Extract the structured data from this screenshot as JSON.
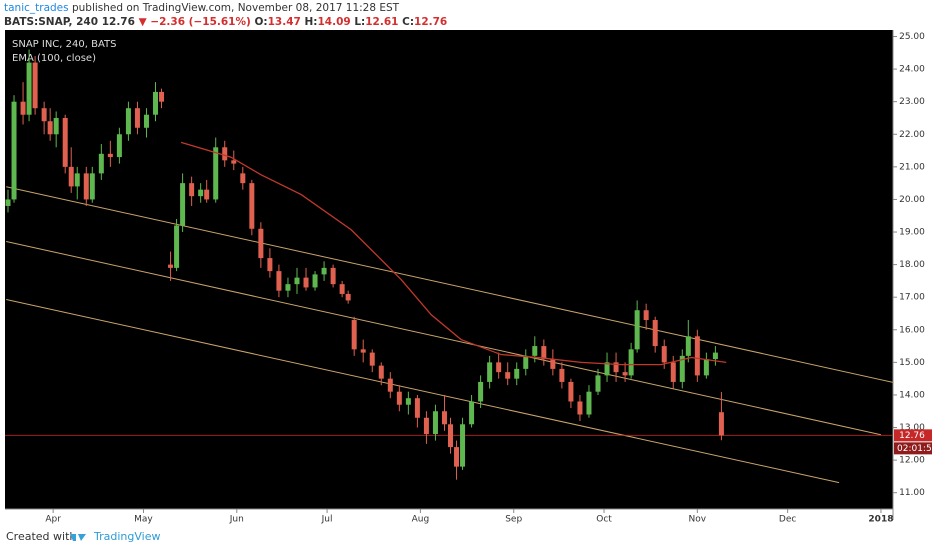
{
  "header": {
    "user": "tanic_trades",
    "published": "published on TradingView.com, November 08, 2017 11:28 EST",
    "symbol": "BATS:SNAP, 240",
    "last": "12.76",
    "arrow": "▼",
    "change": "−2.36 (−15.61%)",
    "o_label": "O:",
    "o": "13.47",
    "h_label": "H:",
    "h": "14.09",
    "l_label": "L:",
    "l": "12.61",
    "c_label": "C:",
    "c": "12.76"
  },
  "chart_data": {
    "type": "candlestick",
    "name": "SNAP INC, 240, BATS",
    "up_color": "#5fb84f",
    "down_color": "#e0614f",
    "x": [
      76,
      78,
      81,
      83,
      85,
      88,
      90,
      92,
      95,
      97,
      99,
      102,
      104,
      107,
      110,
      113,
      116,
      119,
      122,
      125,
      127,
      130,
      132,
      134,
      137,
      140,
      142,
      145,
      148,
      151,
      154,
      157,
      160,
      163,
      166,
      169,
      172,
      175,
      178,
      181,
      184,
      187,
      189,
      191,
      194,
      197,
      200,
      203,
      206,
      209,
      212,
      215,
      218,
      221,
      223,
      225,
      227,
      230,
      233,
      236,
      239,
      242,
      245,
      248,
      251,
      254,
      257,
      260,
      263,
      266,
      269,
      272,
      275,
      278,
      281,
      283,
      285,
      288,
      291,
      294,
      297,
      300,
      302,
      305,
      308,
      311,
      313
    ],
    "open": [
      19.8,
      20.0,
      23.0,
      22.6,
      24.2,
      22.8,
      22.4,
      22.0,
      22.5,
      21.0,
      20.4,
      20.8,
      20.0,
      20.8,
      21.4,
      21.3,
      22.0,
      22.8,
      22.2,
      22.6,
      23.3,
      18.0,
      17.9,
      19.2,
      20.5,
      20.1,
      20.3,
      20.0,
      21.6,
      21.2,
      20.8,
      20.5,
      19.1,
      18.2,
      17.8,
      17.2,
      17.4,
      17.6,
      17.3,
      17.7,
      17.9,
      17.4,
      17.1,
      16.3,
      15.4,
      15.3,
      14.9,
      14.5,
      14.1,
      13.7,
      13.9,
      13.3,
      12.8,
      13.5,
      13.1,
      12.4,
      11.8,
      13.1,
      13.8,
      14.4,
      15.0,
      14.7,
      14.5,
      14.8,
      15.2,
      15.5,
      15.1,
      14.8,
      14.4,
      13.8,
      13.4,
      14.1,
      14.6,
      15.0,
      14.7,
      14.6,
      15.4,
      16.6,
      16.3,
      15.5,
      15.0,
      14.4,
      15.2,
      15.8,
      14.6,
      15.1,
      13.47
    ],
    "high": [
      20.3,
      23.2,
      23.6,
      24.6,
      24.4,
      23.0,
      22.8,
      22.7,
      22.6,
      21.6,
      21.0,
      21.0,
      21.0,
      21.7,
      21.8,
      22.2,
      23.0,
      23.0,
      22.8,
      23.6,
      23.4,
      18.4,
      19.4,
      20.8,
      20.7,
      20.5,
      20.6,
      21.9,
      21.8,
      21.5,
      21.0,
      20.6,
      19.3,
      18.5,
      18.0,
      17.6,
      17.9,
      17.9,
      17.8,
      18.1,
      18.0,
      17.5,
      17.2,
      16.4,
      15.7,
      15.4,
      15.0,
      14.7,
      14.3,
      14.1,
      14.0,
      13.5,
      13.7,
      14.0,
      13.3,
      12.6,
      13.3,
      14.0,
      14.6,
      15.2,
      15.3,
      15.0,
      15.0,
      15.4,
      15.8,
      15.7,
      15.4,
      15.0,
      14.5,
      14.0,
      14.3,
      14.8,
      15.3,
      15.3,
      15.0,
      15.6,
      16.9,
      16.8,
      16.4,
      15.7,
      15.2,
      15.4,
      16.3,
      16.0,
      15.3,
      15.5,
      14.09
    ],
    "low": [
      19.6,
      19.9,
      22.3,
      22.4,
      22.6,
      22.0,
      21.8,
      21.6,
      20.8,
      20.2,
      20.0,
      19.8,
      19.9,
      20.6,
      21.0,
      21.1,
      21.8,
      22.0,
      21.9,
      22.4,
      22.8,
      17.5,
      17.8,
      19.0,
      19.8,
      19.9,
      19.9,
      19.9,
      21.0,
      20.9,
      20.3,
      18.9,
      17.9,
      17.6,
      17.0,
      17.0,
      17.1,
      17.2,
      17.2,
      17.5,
      17.3,
      17.0,
      16.8,
      15.2,
      15.0,
      14.7,
      14.3,
      13.9,
      13.5,
      13.4,
      13.0,
      12.5,
      12.6,
      12.9,
      12.2,
      11.4,
      11.7,
      13.0,
      13.6,
      14.2,
      14.5,
      14.3,
      14.3,
      14.6,
      15.0,
      14.9,
      14.6,
      14.2,
      13.6,
      13.2,
      13.3,
      14.0,
      14.4,
      14.4,
      14.4,
      14.5,
      15.3,
      16.0,
      15.3,
      14.8,
      14.2,
      14.2,
      15.0,
      14.4,
      14.5,
      14.9,
      12.61
    ],
    "close": [
      20.0,
      23.0,
      22.6,
      24.2,
      22.8,
      22.4,
      22.0,
      22.5,
      21.0,
      20.4,
      20.8,
      20.0,
      20.8,
      21.4,
      21.3,
      22.0,
      22.8,
      22.2,
      22.6,
      23.3,
      23.0,
      17.9,
      19.2,
      20.5,
      20.1,
      20.3,
      20.0,
      21.6,
      21.2,
      21.1,
      20.5,
      19.1,
      18.2,
      17.8,
      17.2,
      17.4,
      17.6,
      17.3,
      17.7,
      17.9,
      17.4,
      17.1,
      16.9,
      15.4,
      15.3,
      14.9,
      14.5,
      14.1,
      13.7,
      13.9,
      13.3,
      12.8,
      13.5,
      13.1,
      12.4,
      11.8,
      13.1,
      13.8,
      14.4,
      15.0,
      14.7,
      14.5,
      14.8,
      15.2,
      15.5,
      15.1,
      14.8,
      14.4,
      13.8,
      13.4,
      14.1,
      14.6,
      15.0,
      14.7,
      14.6,
      15.4,
      16.6,
      16.3,
      15.5,
      15.0,
      14.4,
      15.2,
      15.8,
      14.6,
      15.1,
      15.3,
      12.76
    ],
    "ema": {
      "name": "EMA (100, close)",
      "color": "#c0392b",
      "x": [
        133.5,
        150,
        160,
        173.4,
        190,
        200,
        206.6,
        216.6,
        226.5,
        239.8,
        253,
        266.4,
        279.7,
        293,
        303,
        314.6
      ],
      "values": [
        21.75,
        21.3,
        20.76,
        20.15,
        19.07,
        18.15,
        17.54,
        16.46,
        15.7,
        15.24,
        15.14,
        15.0,
        14.93,
        14.93,
        15.15,
        15.0
      ]
    },
    "trendline_color": "#c9a56b",
    "trendlines": [
      {
        "x": [
          75.4,
          370.3
        ],
        "values": [
          20.39,
          14.38
        ]
      },
      {
        "x": [
          75.4,
          366
        ],
        "values": [
          18.71,
          12.78
        ]
      },
      {
        "x": [
          75.4,
          352.1
        ],
        "values": [
          16.93,
          11.31
        ]
      }
    ],
    "last_price": {
      "value": 12.76,
      "label": "12.76"
    },
    "last_price_color": "#c62828",
    "countdown": "02:01:5",
    "xlim": [
      75,
      370
    ],
    "ylim": [
      10.5,
      25.2
    ],
    "xticks": [
      {
        "value": 91,
        "label": "Apr"
      },
      {
        "value": 121,
        "label": "May"
      },
      {
        "value": 152,
        "label": "Jun"
      },
      {
        "value": 182,
        "label": "Jul"
      },
      {
        "value": 213,
        "label": "Aug"
      },
      {
        "value": 244,
        "label": "Sep"
      },
      {
        "value": 274,
        "label": "Oct"
      },
      {
        "value": 305,
        "label": "Nov"
      },
      {
        "value": 335,
        "label": "Dec"
      },
      {
        "value": 366,
        "label": "2018"
      }
    ],
    "yticks": [
      {
        "value": 11,
        "label": "11.00"
      },
      {
        "value": 12,
        "label": "12.00"
      },
      {
        "value": 13,
        "label": "13.00"
      },
      {
        "value": 14,
        "label": "14.00"
      },
      {
        "value": 15,
        "label": "15.00"
      },
      {
        "value": 16,
        "label": "16.00"
      },
      {
        "value": 17,
        "label": "17.00"
      },
      {
        "value": 18,
        "label": "18.00"
      },
      {
        "value": 19,
        "label": "19.00"
      },
      {
        "value": 20,
        "label": "20.00"
      },
      {
        "value": 21,
        "label": "21.00"
      },
      {
        "value": 22,
        "label": "22.00"
      },
      {
        "value": 23,
        "label": "23.00"
      },
      {
        "value": 24,
        "label": "24.00"
      },
      {
        "value": 25,
        "label": "25.00"
      }
    ]
  },
  "footer": {
    "text": "Created with",
    "brand": "TradingView"
  }
}
